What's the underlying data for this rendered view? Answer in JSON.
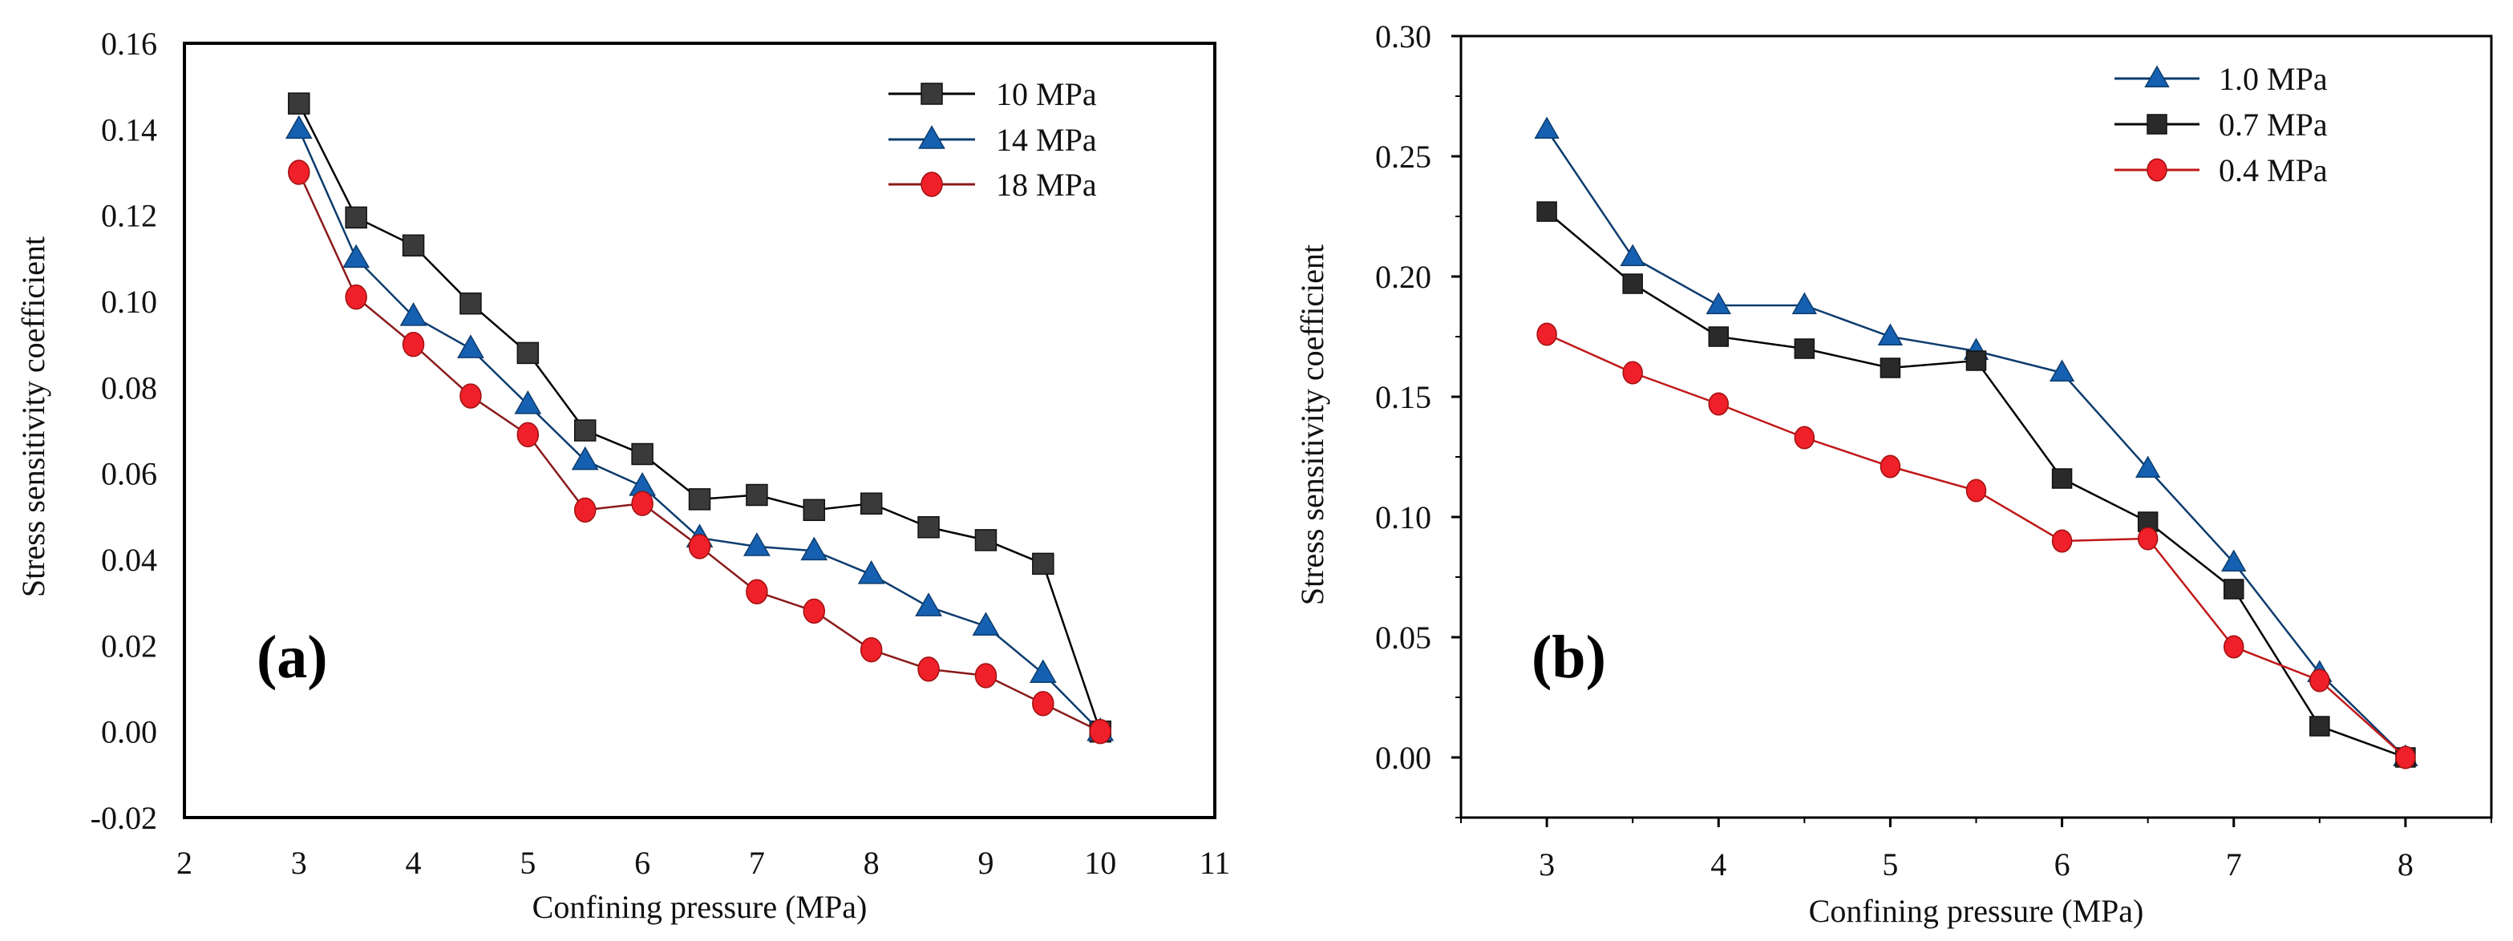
{
  "chart_data": [
    {
      "type": "line",
      "panel_label": "(a)",
      "xlabel": "Confining pressure (MPa)",
      "ylabel": "Stress sensitivity coefficient",
      "xlim": [
        2,
        11
      ],
      "ylim": [
        -0.02,
        0.16
      ],
      "xticks": [
        2,
        3,
        4,
        5,
        6,
        7,
        8,
        9,
        10,
        11
      ],
      "xtick_labels": [
        "2",
        "3",
        "4",
        "5",
        "6",
        "7",
        "8",
        "9",
        "10",
        "11"
      ],
      "yticks": [
        -0.02,
        0,
        0.02,
        0.04,
        0.06,
        0.08,
        0.1,
        0.12,
        0.14,
        0.16
      ],
      "ytick_labels": [
        "-0.02",
        "0.00",
        "0.02",
        "0.04",
        "0.06",
        "0.08",
        "0.10",
        "0.12",
        "0.14",
        "0.16"
      ],
      "legend_position": "top-right",
      "grid": false,
      "x": [
        3,
        3.5,
        4,
        4.5,
        5,
        5.5,
        6,
        6.5,
        7,
        7.5,
        8,
        8.5,
        9,
        9.5,
        10
      ],
      "series": [
        {
          "name": "10 MPa",
          "marker": "square",
          "color": "#3a3a3a",
          "line": "#000000",
          "values": [
            0.146,
            0.1195,
            0.113,
            0.0995,
            0.088,
            0.07,
            0.0645,
            0.054,
            0.055,
            0.0515,
            0.053,
            0.0475,
            0.0445,
            0.039,
            0.0
          ]
        },
        {
          "name": "14 MPa",
          "marker": "triangle",
          "color": "#1560b0",
          "line": "#0d3c6e",
          "values": [
            0.14,
            0.11,
            0.0965,
            0.089,
            0.076,
            0.063,
            0.057,
            0.045,
            0.043,
            0.042,
            0.0365,
            0.029,
            0.0245,
            0.0135,
            0.0
          ]
        },
        {
          "name": "18 MPa",
          "marker": "circle",
          "color": "#f0202a",
          "line": "#8b1a1a",
          "values": [
            0.13,
            0.101,
            0.09,
            0.078,
            0.069,
            0.0515,
            0.053,
            0.043,
            0.0325,
            0.028,
            0.019,
            0.0145,
            0.013,
            0.0065,
            0.0
          ]
        }
      ]
    },
    {
      "type": "line",
      "panel_label": "(b)",
      "xlabel": "Confining pressure (MPa)",
      "ylabel": "Stress sensitivity coefficient",
      "xlim": [
        2.5,
        8.5
      ],
      "ylim": [
        -0.025,
        0.3
      ],
      "xticks": [
        3,
        4,
        5,
        6,
        7,
        8
      ],
      "xtick_labels": [
        "3",
        "4",
        "5",
        "6",
        "7",
        "8"
      ],
      "yticks": [
        0,
        0.05,
        0.1,
        0.15,
        0.2,
        0.25,
        0.3
      ],
      "ytick_labels": [
        "0.00",
        "0.05",
        "0.10",
        "0.15",
        "0.20",
        "0.25",
        "0.30"
      ],
      "legend_position": "top-right",
      "grid": false,
      "x": [
        3,
        3.5,
        4,
        4.5,
        5,
        5.5,
        6,
        6.5,
        7,
        7.5,
        8
      ],
      "series": [
        {
          "name": "1.0 MPa",
          "marker": "triangle",
          "color": "#1560b0",
          "line": "#0d3c6e",
          "values": [
            0.261,
            0.208,
            0.188,
            0.188,
            0.175,
            0.169,
            0.16,
            0.12,
            0.081,
            0.035,
            0.0
          ]
        },
        {
          "name": "0.7 MPa",
          "marker": "square",
          "color": "#2a2a2a",
          "line": "#000000",
          "values": [
            0.227,
            0.197,
            0.175,
            0.17,
            0.162,
            0.165,
            0.116,
            0.098,
            0.07,
            0.013,
            0.0
          ]
        },
        {
          "name": "0.4 MPa",
          "marker": "circle",
          "color": "#f0202a",
          "line": "#c01818",
          "values": [
            0.176,
            0.16,
            0.147,
            0.133,
            0.121,
            0.111,
            0.09,
            0.091,
            0.046,
            0.032,
            0.0
          ]
        }
      ]
    }
  ]
}
